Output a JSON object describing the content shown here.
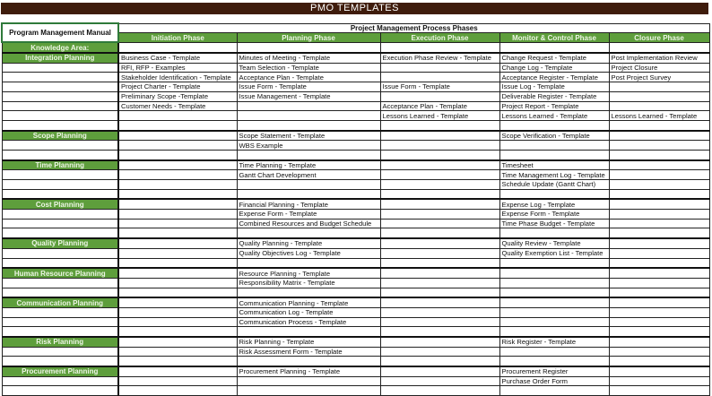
{
  "title": "PMO TEMPLATES",
  "manual_label": "Program Management Manual",
  "phases_title": "Project Management Process Phases",
  "knowledge_area_label": "Knowledge Area:",
  "phases": [
    "Initiation Phase",
    "Planning Phase",
    "Execution Phase",
    "Monitor & Control Phase",
    "Closure Phase"
  ],
  "colors": {
    "title_bar": "#3f1c0c",
    "header_green": "#5e9e3c"
  },
  "sections": [
    {
      "label": "Integration Planning",
      "rows": [
        [
          "Business Case - Template",
          "Minutes of Meeting - Template",
          "Execution Phase Review - Template",
          "Change Request - Template",
          "Post Implementation Review"
        ],
        [
          "RFI, RFP - Examples",
          "Team Selection - Template",
          "",
          "Change Log - Template",
          "Project Closure"
        ],
        [
          "Stakeholder Identification - Template",
          "Acceptance Plan - Template",
          "",
          "Acceptance Register - Template",
          "Post Project Survey"
        ],
        [
          "Project Charter - Template",
          "Issue Form - Template",
          "Issue Form - Template",
          "Issue Log - Template",
          ""
        ],
        [
          "Preliminary Scope -Template",
          "Issue Management - Template",
          "",
          "Deliverable Register - Template",
          ""
        ],
        [
          "Customer Needs -  Template",
          "",
          "Acceptance Plan - Template",
          "Project Report - Template",
          ""
        ],
        [
          "",
          "",
          "Lessons Learned - Template",
          "Lessons Learned - Template",
          "Lessons Learned - Template"
        ],
        [
          "",
          "",
          "",
          "",
          ""
        ]
      ]
    },
    {
      "label": "Scope Planning",
      "rows": [
        [
          "",
          "Scope Statement - Template",
          "",
          "Scope Verification - Template",
          ""
        ],
        [
          "",
          "WBS Example",
          "",
          "",
          ""
        ],
        [
          "",
          "",
          "",
          "",
          ""
        ]
      ]
    },
    {
      "label": "Time Planning",
      "rows": [
        [
          "",
          "Time Planning - Template",
          "",
          "Timesheet",
          ""
        ],
        [
          "",
          "Gantt Chart Development",
          "",
          "Time Management Log - Template",
          ""
        ],
        [
          "",
          "",
          "",
          "Schedule Update (Gantt Chart)",
          ""
        ],
        [
          "",
          "",
          "",
          "",
          ""
        ]
      ]
    },
    {
      "label": "Cost Planning",
      "rows": [
        [
          "",
          "Financial  Planning - Template",
          "",
          "Expense Log - Template",
          ""
        ],
        [
          "",
          "Expense Form - Template",
          "",
          "Expense Form - Template",
          ""
        ],
        [
          "",
          "Combined Resources and Budget Schedule",
          "",
          "Time Phase Budget - Template",
          ""
        ],
        [
          "",
          "",
          "",
          "",
          ""
        ]
      ]
    },
    {
      "label": "Quality Planning",
      "rows": [
        [
          "",
          "Quality Planning - Template",
          "",
          "Quality Review - Template",
          ""
        ],
        [
          "",
          "Quality Objectives Log - Template",
          "",
          "Quality Exemption List - Template",
          ""
        ],
        [
          "",
          "",
          "",
          "",
          ""
        ]
      ]
    },
    {
      "label": "Human Resource Planning",
      "rows": [
        [
          "",
          "Resource Planning - Template",
          "",
          "",
          ""
        ],
        [
          "",
          "Responsibility Matrix - Template",
          "",
          "",
          ""
        ],
        [
          "",
          "",
          "",
          "",
          ""
        ]
      ]
    },
    {
      "label": "Communication Planning",
      "rows": [
        [
          "",
          "Communication Planning - Template",
          "",
          "",
          ""
        ],
        [
          "",
          "Communication Log - Template",
          "",
          "",
          ""
        ],
        [
          "",
          "Communication Process - Template",
          "",
          "",
          ""
        ],
        [
          "",
          "",
          "",
          "",
          ""
        ]
      ]
    },
    {
      "label": "Risk Planning",
      "rows": [
        [
          "",
          "Risk Planning - Template",
          "",
          "Risk Register - Template",
          ""
        ],
        [
          "",
          "Risk Assessment Form - Template",
          "",
          "",
          ""
        ],
        [
          "",
          "",
          "",
          "",
          ""
        ]
      ]
    },
    {
      "label": "Procurement Planning",
      "rows": [
        [
          "",
          "Procurement Planning - Template",
          "",
          "Procurement Register",
          ""
        ],
        [
          "",
          "",
          "",
          "Purchase Order Form",
          ""
        ],
        [
          "",
          "",
          "",
          "",
          ""
        ]
      ]
    }
  ]
}
